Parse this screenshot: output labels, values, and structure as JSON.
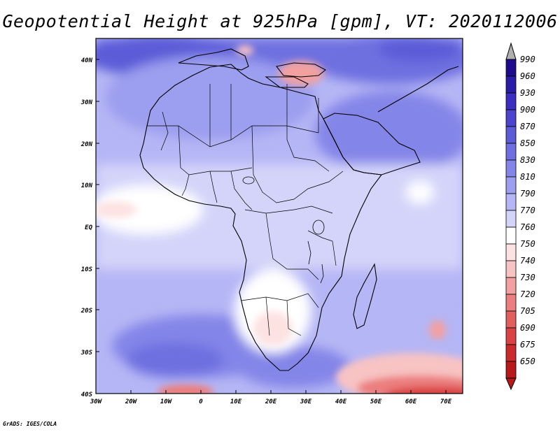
{
  "title": "Geopotential Height at 925hPa [gpm], VT: 2020112006",
  "credit": "GrADS: IGES/COLA",
  "lon_labels": [
    "30W",
    "20W",
    "10W",
    "0",
    "10E",
    "20E",
    "30E",
    "40E",
    "50E",
    "60E",
    "70E"
  ],
  "lat_labels": [
    "40N",
    "30N",
    "20N",
    "10N",
    "EQ",
    "10S",
    "20S",
    "30S",
    "40S"
  ],
  "colorbar": {
    "labels": [
      "990",
      "960",
      "930",
      "900",
      "870",
      "850",
      "830",
      "810",
      "790",
      "770",
      "760",
      "750",
      "740",
      "730",
      "720",
      "705",
      "690",
      "675",
      "650"
    ],
    "colors": [
      "#1e0a8c",
      "#2a1ca8",
      "#3a2fc0",
      "#4b44cf",
      "#5c5bd8",
      "#6e6fe0",
      "#8485e8",
      "#9c9eef",
      "#b5b6f5",
      "#d4d4fa",
      "#ffffff",
      "#fde2e2",
      "#f8c3c3",
      "#f2a0a0",
      "#eb7e7e",
      "#e35e5e",
      "#d94343",
      "#cc2b2b",
      "#b81a1a"
    ],
    "arrow_top_color": "#b0b0b0",
    "arrow_bottom_color": "#b81a1a"
  }
}
